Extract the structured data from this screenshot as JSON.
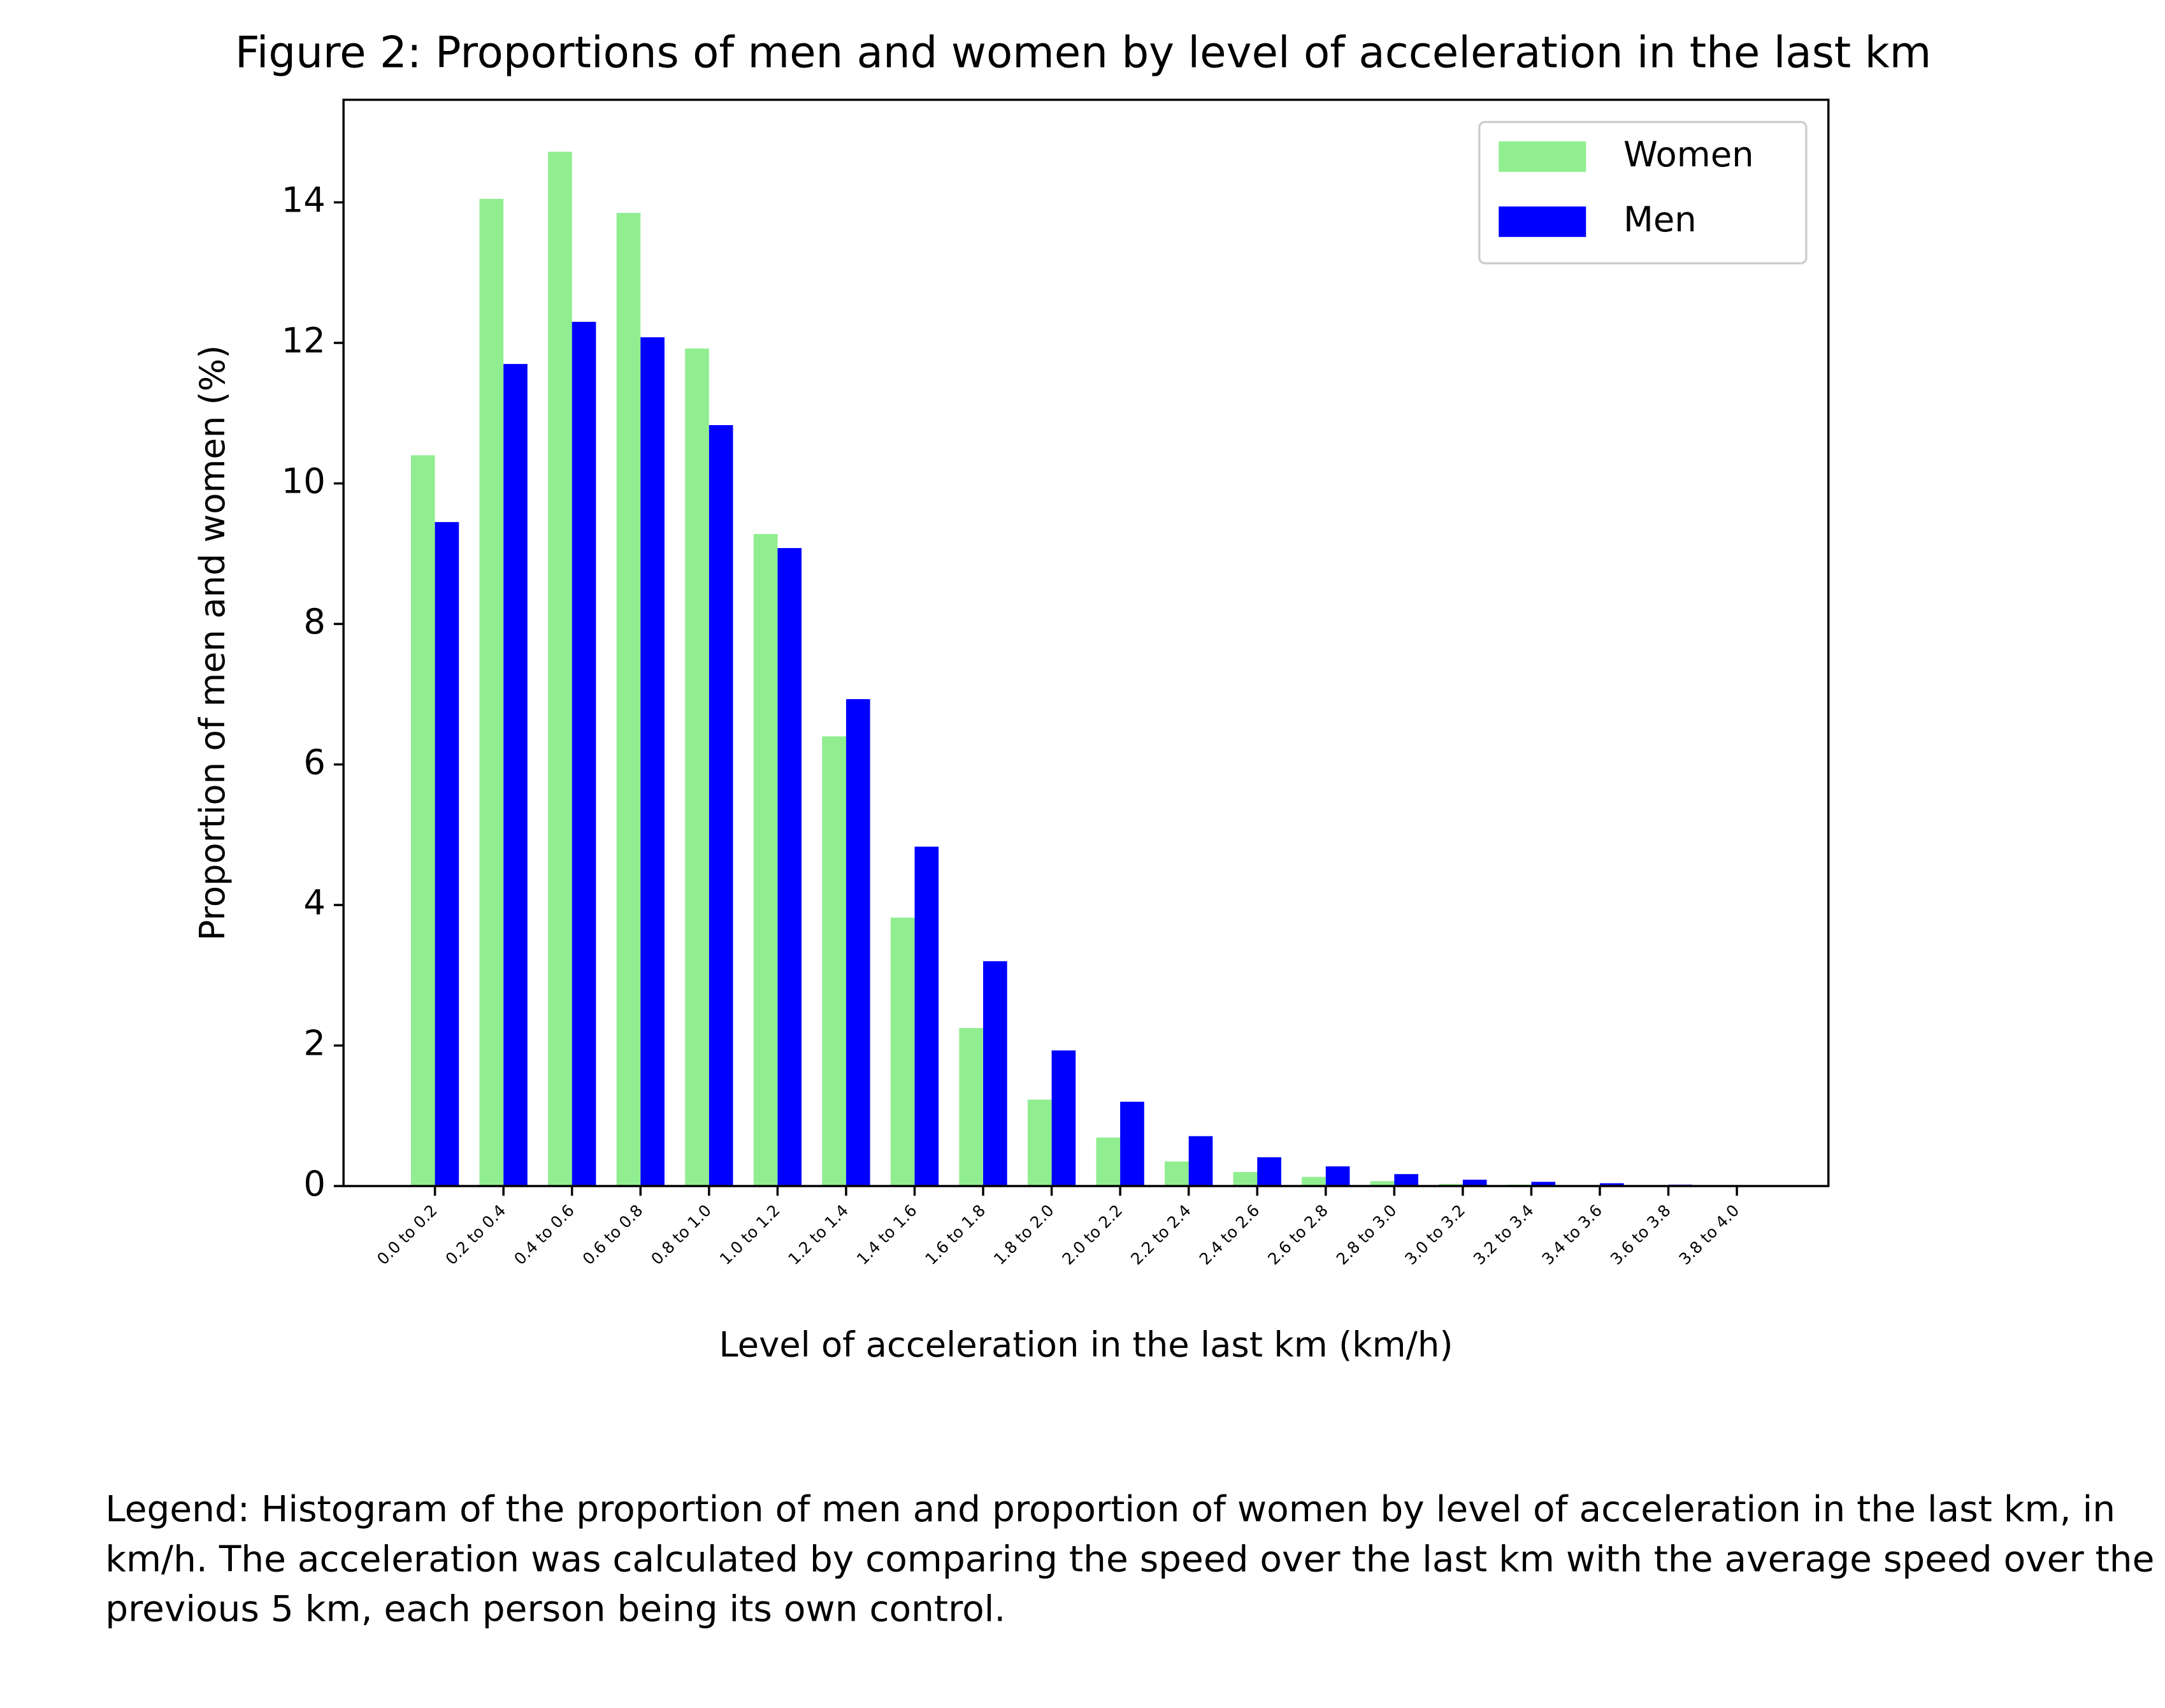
{
  "chart_data": {
    "type": "bar",
    "title": "Figure 2: Proportions of men and women by level of acceleration in the last km",
    "xlabel": "Level of acceleration in the last km (km/h)",
    "ylabel": "Proportion of men and women (%)",
    "categories": [
      "0.0 to 0.2",
      "0.2 to 0.4",
      "0.4 to 0.6",
      "0.6 to 0.8",
      "0.8 to 1.0",
      "1.0 to 1.2",
      "1.2 to 1.4",
      "1.4 to 1.6",
      "1.6 to 1.8",
      "1.8 to 2.0",
      "2.0 to 2.2",
      "2.2 to 2.4",
      "2.4 to 2.6",
      "2.6 to 2.8",
      "2.8 to 3.0",
      "3.0 to 3.2",
      "3.2 to 3.4",
      "3.4 to 3.6",
      "3.6 to 3.8",
      "3.8 to 4.0"
    ],
    "series": [
      {
        "name": "Women",
        "color": "#90ee90",
        "values": [
          10.4,
          14.05,
          14.72,
          13.85,
          11.92,
          9.28,
          6.4,
          3.82,
          2.25,
          1.23,
          0.69,
          0.35,
          0.2,
          0.13,
          0.07,
          0.03,
          0.02,
          0.01,
          0.005,
          0.0
        ]
      },
      {
        "name": "Men",
        "color": "#0000ff",
        "values": [
          9.45,
          11.7,
          12.3,
          12.08,
          10.83,
          9.08,
          6.93,
          4.83,
          3.2,
          1.93,
          1.2,
          0.71,
          0.41,
          0.28,
          0.17,
          0.09,
          0.06,
          0.04,
          0.02,
          0.01
        ]
      }
    ],
    "ylim": [
      0,
      15.46
    ],
    "yticks": [
      0,
      2,
      4,
      6,
      8,
      10,
      12,
      14
    ],
    "legend": "upper right"
  },
  "caption": "Legend: Histogram of the proportion of men and proportion of women by level of acceleration in the last km, in km/h. The acceleration was calculated by comparing the speed over the last km with the average speed over the previous 5 km, each person being its own control."
}
